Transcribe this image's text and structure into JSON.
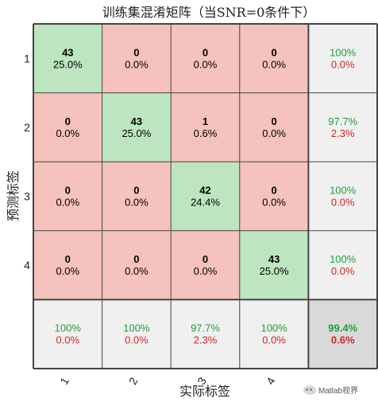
{
  "title": "训练集混淆矩阵（当SNR=0条件下）",
  "watermark": "Matlab视界",
  "chart_data": {
    "type": "heatmap",
    "title": "训练集混淆矩阵（当SNR=0条件下）",
    "xlabel": "实际标签",
    "ylabel": "预测标签",
    "x_tick_labels": [
      "1",
      "2",
      "3",
      "4"
    ],
    "y_tick_labels": [
      "1",
      "2",
      "3",
      "4"
    ],
    "matrix": [
      [
        {
          "count": "43",
          "pct": "25.0%"
        },
        {
          "count": "0",
          "pct": "0.0%"
        },
        {
          "count": "0",
          "pct": "0.0%"
        },
        {
          "count": "0",
          "pct": "0.0%"
        }
      ],
      [
        {
          "count": "0",
          "pct": "0.0%"
        },
        {
          "count": "43",
          "pct": "25.0%"
        },
        {
          "count": "1",
          "pct": "0.6%"
        },
        {
          "count": "0",
          "pct": "0.0%"
        }
      ],
      [
        {
          "count": "0",
          "pct": "0.0%"
        },
        {
          "count": "0",
          "pct": "0.0%"
        },
        {
          "count": "42",
          "pct": "24.4%"
        },
        {
          "count": "0",
          "pct": "0.0%"
        }
      ],
      [
        {
          "count": "0",
          "pct": "0.0%"
        },
        {
          "count": "0",
          "pct": "0.0%"
        },
        {
          "count": "0",
          "pct": "0.0%"
        },
        {
          "count": "43",
          "pct": "25.0%"
        }
      ]
    ],
    "row_summary": [
      {
        "correct": "100%",
        "error": "0.0%"
      },
      {
        "correct": "97.7%",
        "error": "2.3%"
      },
      {
        "correct": "100%",
        "error": "0.0%"
      },
      {
        "correct": "100%",
        "error": "0.0%"
      }
    ],
    "col_summary": [
      {
        "correct": "100%",
        "error": "0.0%"
      },
      {
        "correct": "100%",
        "error": "0.0%"
      },
      {
        "correct": "97.7%",
        "error": "2.3%"
      },
      {
        "correct": "100%",
        "error": "0.0%"
      }
    ],
    "overall": {
      "correct": "99.4%",
      "error": "0.6%"
    },
    "colors": {
      "correct_cell": "#bde5c0",
      "error_cell": "#f5c2bd",
      "summary_cell": "#f0f0f0",
      "overall_cell": "#d9d9d9",
      "correct_text": "#1f9e3a",
      "error_text": "#d42525",
      "grid_line": "#444444"
    }
  }
}
